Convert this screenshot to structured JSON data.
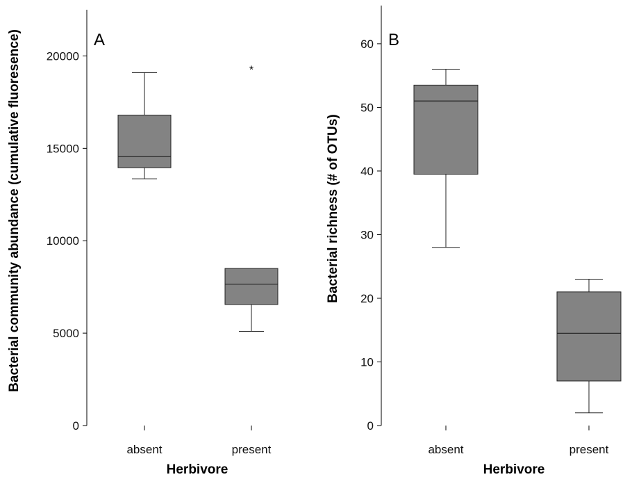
{
  "colors": {
    "box_fill": "#838383",
    "line": "#222222",
    "axis": "#000000"
  },
  "chart_data": [
    {
      "type": "box",
      "panel_label": "A",
      "xlabel": "Herbivore",
      "ylabel": "Bacterial community abundance (cumulative fluoresence)",
      "ylim": [
        0,
        22500
      ],
      "yticks": [
        0,
        5000,
        10000,
        15000,
        20000
      ],
      "categories": [
        "absent",
        "present"
      ],
      "boxes": [
        {
          "category": "absent",
          "whisker_low": 13350,
          "q1": 13950,
          "median": 14550,
          "q3": 16800,
          "whisker_high": 19100,
          "outliers": []
        },
        {
          "category": "present",
          "whisker_low": 5100,
          "q1": 6550,
          "median": 7650,
          "q3": 8500,
          "whisker_high": 8500,
          "outliers": [
            19400
          ]
        }
      ],
      "outlier_symbol": "*"
    },
    {
      "type": "box",
      "panel_label": "B",
      "xlabel": "Herbivore",
      "ylabel": "Bacterial richness (# of OTUs)",
      "ylim": [
        0,
        66
      ],
      "yticks": [
        0,
        10,
        20,
        30,
        40,
        50,
        60
      ],
      "categories": [
        "absent",
        "present"
      ],
      "boxes": [
        {
          "category": "absent",
          "whisker_low": 28,
          "q1": 39.5,
          "median": 51,
          "q3": 53.5,
          "whisker_high": 56,
          "outliers": []
        },
        {
          "category": "present",
          "whisker_low": 2,
          "q1": 7,
          "median": 14.5,
          "q3": 21,
          "whisker_high": 23,
          "outliers": []
        }
      ],
      "outlier_symbol": "*"
    }
  ]
}
